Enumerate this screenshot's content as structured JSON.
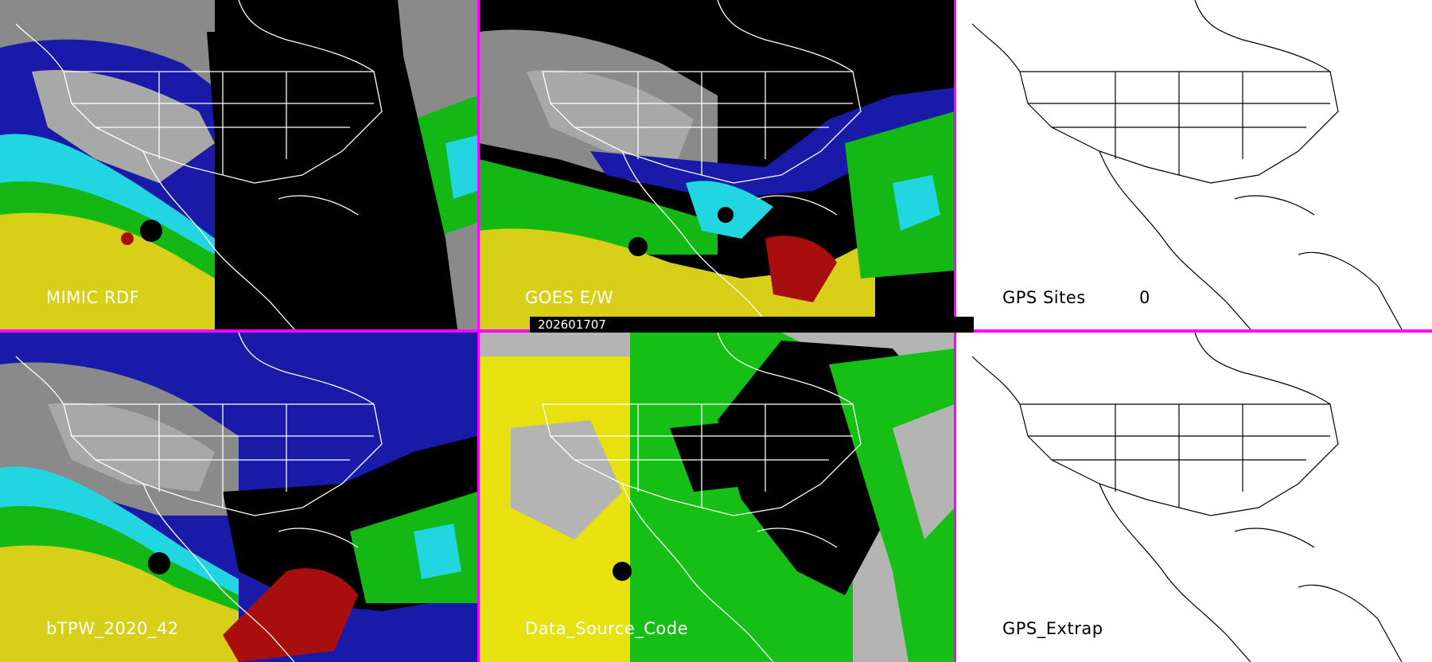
{
  "timestamp": "202601707",
  "panels": [
    {
      "label": "MIMIC RDF",
      "theme": "satellite"
    },
    {
      "label": "GOES E/W",
      "theme": "satellite"
    },
    {
      "label": "GPS Sites",
      "theme": "blank",
      "count": "0"
    },
    {
      "label": "bTPW_2020_42",
      "theme": "satellite"
    },
    {
      "label": "Data_Source_Code",
      "theme": "source"
    },
    {
      "label": "GPS_Extrap",
      "theme": "blank"
    }
  ],
  "colors": {
    "divider": "#ff00ff",
    "very_dry": "#000000",
    "dry_gray": "#8a8a8a",
    "blue": "#1a1aa8",
    "cyan": "#21d6e0",
    "green": "#14b814",
    "yellow": "#d8cf18",
    "red": "#a80e0e",
    "source_gray": "#b4b4b4",
    "source_yellow": "#e6e10f",
    "source_green": "#15bf15"
  }
}
